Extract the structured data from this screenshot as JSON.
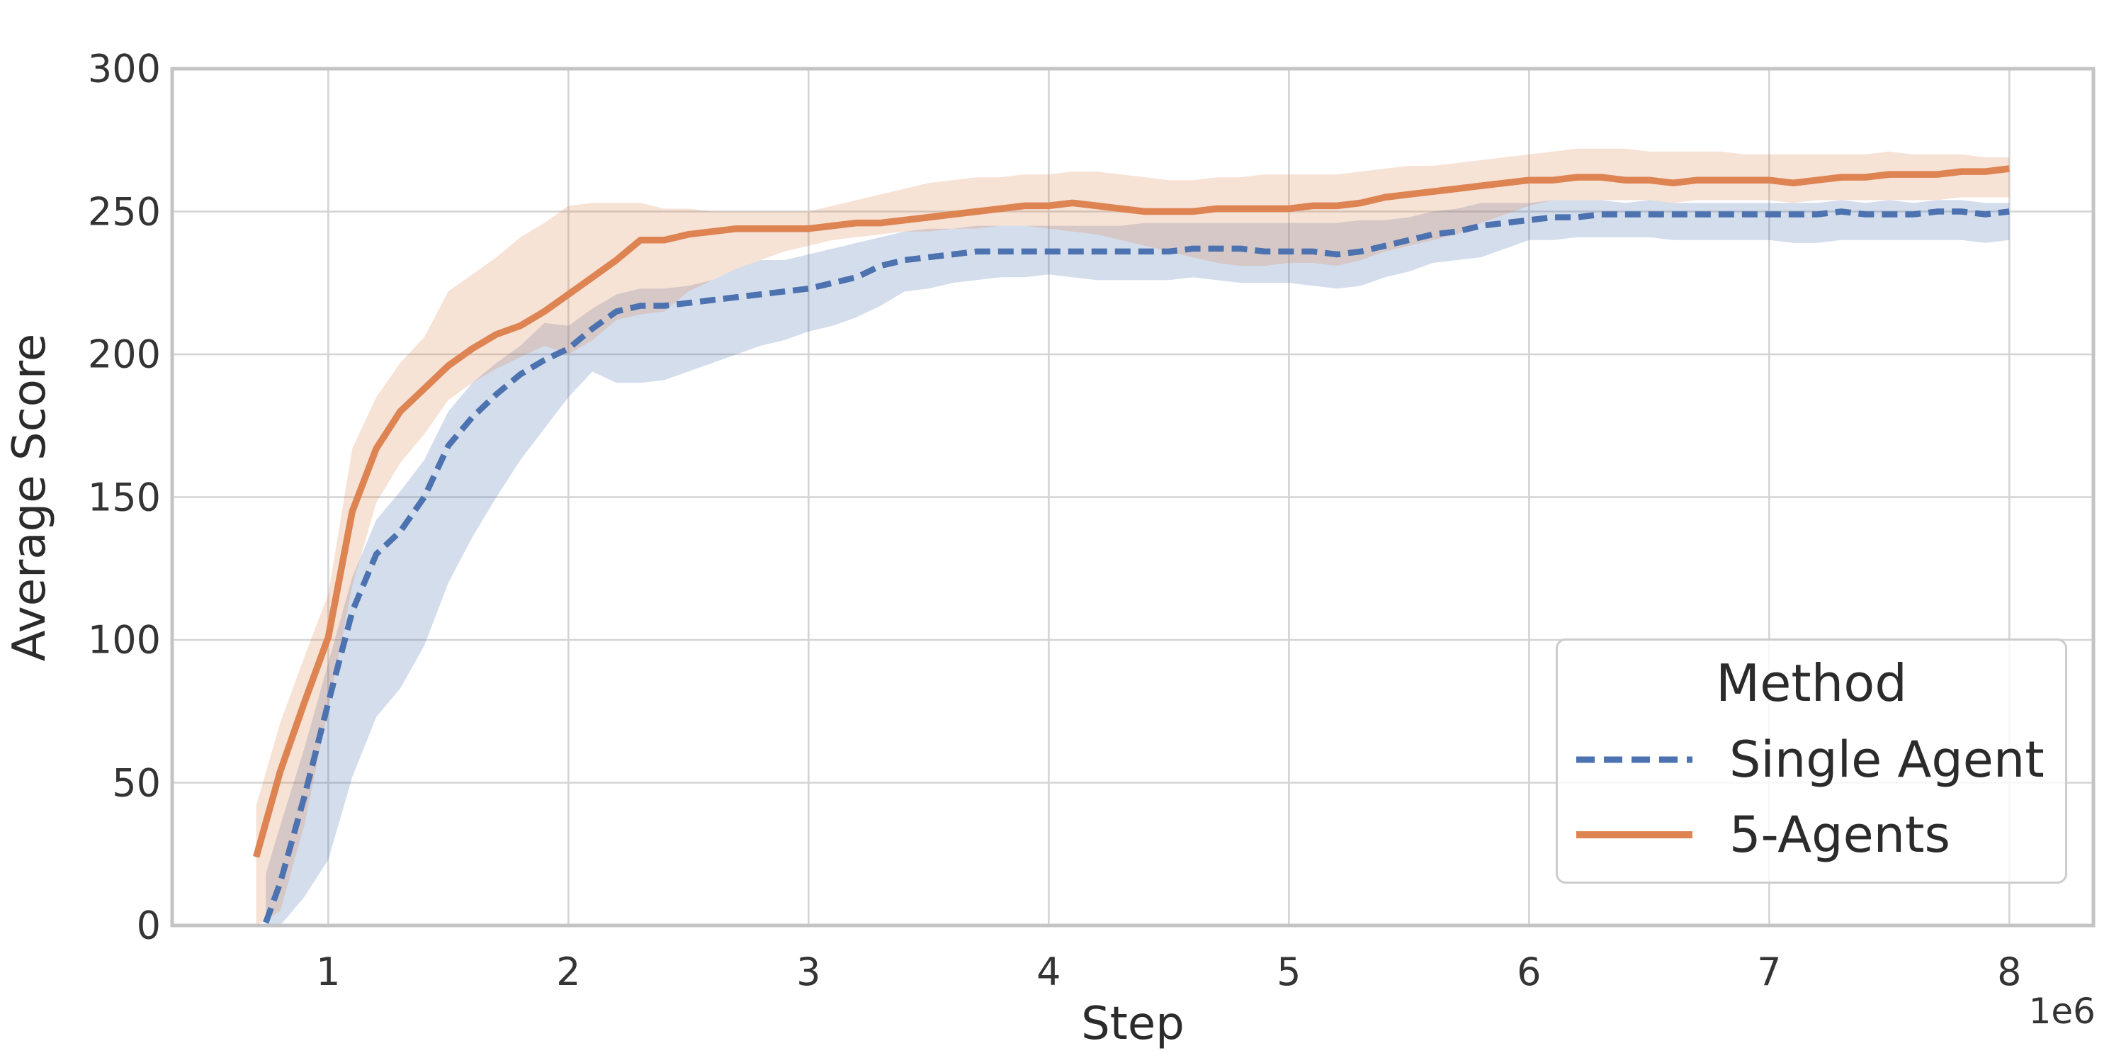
{
  "chart_data": {
    "type": "line",
    "title": "",
    "xlabel": "Step",
    "ylabel": "Average Score",
    "x_axis_offset_label": "1e6",
    "xlim": [
      0.35,
      8.35
    ],
    "ylim": [
      0,
      300
    ],
    "xticks": [
      1,
      2,
      3,
      4,
      5,
      6,
      7,
      8
    ],
    "yticks": [
      0,
      50,
      100,
      150,
      200,
      250,
      300
    ],
    "grid": true,
    "grid_color": "#d4d4d4",
    "spine_color": "#c4c4c4",
    "background_color": "#ffffff",
    "legend": {
      "title": "Method",
      "position": "lower right",
      "entries": [
        {
          "label": "Single Agent",
          "color": "#4C72B0",
          "style": "dashed"
        },
        {
          "label": "5-Agents",
          "color": "#DD8452",
          "style": "solid"
        }
      ]
    },
    "series": [
      {
        "name": "Single Agent",
        "color": "#4C72B0",
        "line_style": "dashed",
        "band_alpha": 0.24,
        "x": [
          0.74,
          0.8,
          0.9,
          1.0,
          1.1,
          1.2,
          1.3,
          1.4,
          1.5,
          1.6,
          1.7,
          1.8,
          1.9,
          2.0,
          2.1,
          2.2,
          2.3,
          2.4,
          2.5,
          2.6,
          2.7,
          2.8,
          2.9,
          3.0,
          3.1,
          3.2,
          3.3,
          3.4,
          3.5,
          3.6,
          3.7,
          3.8,
          3.9,
          4.0,
          4.1,
          4.2,
          4.3,
          4.4,
          4.5,
          4.6,
          4.7,
          4.8,
          4.9,
          5.0,
          5.1,
          5.2,
          5.3,
          5.4,
          5.5,
          5.6,
          5.7,
          5.8,
          5.9,
          6.0,
          6.1,
          6.2,
          6.3,
          6.4,
          6.5,
          6.6,
          6.7,
          6.8,
          6.9,
          7.0,
          7.1,
          7.2,
          7.3,
          7.4,
          7.5,
          7.6,
          7.7,
          7.8,
          7.9,
          8.0
        ],
        "mean": [
          1,
          15,
          45,
          78,
          110,
          130,
          138,
          150,
          168,
          178,
          186,
          193,
          198,
          202,
          209,
          215,
          217,
          217,
          218,
          219,
          220,
          221,
          222,
          223,
          225,
          227,
          231,
          233,
          234,
          235,
          236,
          236,
          236,
          236,
          236,
          236,
          236,
          236,
          236,
          237,
          237,
          237,
          236,
          236,
          236,
          235,
          236,
          238,
          240,
          242,
          243,
          245,
          246,
          247,
          248,
          248,
          249,
          249,
          249,
          249,
          249,
          249,
          249,
          249,
          249,
          249,
          250,
          249,
          249,
          249,
          250,
          250,
          249,
          250
        ],
        "hi": [
          18,
          35,
          62,
          92,
          122,
          142,
          152,
          163,
          180,
          190,
          197,
          203,
          211,
          210,
          216,
          221,
          223,
          223,
          224,
          226,
          230,
          233,
          233,
          235,
          237,
          239,
          241,
          243,
          244,
          244,
          245,
          245,
          245,
          245,
          245,
          245,
          245,
          246,
          246,
          246,
          246,
          246,
          246,
          246,
          246,
          246,
          247,
          247,
          248,
          250,
          251,
          253,
          253,
          253,
          254,
          254,
          254,
          253,
          254,
          253,
          253,
          253,
          253,
          253,
          253,
          253,
          254,
          253,
          254,
          253,
          254,
          254,
          253,
          253
        ],
        "lo": [
          0,
          0,
          10,
          23,
          52,
          73,
          83,
          98,
          120,
          136,
          150,
          163,
          174,
          185,
          194,
          190,
          190,
          191,
          194,
          197,
          200,
          203,
          205,
          208,
          210,
          213,
          217,
          222,
          223,
          225,
          226,
          227,
          227,
          228,
          227,
          226,
          226,
          226,
          226,
          227,
          226,
          225,
          225,
          225,
          224,
          223,
          224,
          227,
          229,
          232,
          233,
          234,
          237,
          240,
          240,
          241,
          241,
          241,
          241,
          240,
          240,
          240,
          240,
          240,
          239,
          239,
          240,
          240,
          240,
          240,
          240,
          240,
          239,
          240
        ]
      },
      {
        "name": "5-Agents",
        "color": "#DD8452",
        "line_style": "solid",
        "band_alpha": 0.24,
        "x": [
          0.7,
          0.8,
          0.9,
          1.0,
          1.1,
          1.2,
          1.3,
          1.4,
          1.5,
          1.6,
          1.7,
          1.8,
          1.9,
          2.0,
          2.1,
          2.2,
          2.3,
          2.4,
          2.5,
          2.6,
          2.7,
          2.8,
          2.9,
          3.0,
          3.1,
          3.2,
          3.3,
          3.4,
          3.5,
          3.6,
          3.7,
          3.8,
          3.9,
          4.0,
          4.1,
          4.2,
          4.3,
          4.4,
          4.5,
          4.6,
          4.7,
          4.8,
          4.9,
          5.0,
          5.1,
          5.2,
          5.3,
          5.4,
          5.5,
          5.6,
          5.7,
          5.8,
          5.9,
          6.0,
          6.1,
          6.2,
          6.3,
          6.4,
          6.5,
          6.6,
          6.7,
          6.8,
          6.9,
          7.0,
          7.1,
          7.2,
          7.3,
          7.4,
          7.5,
          7.6,
          7.7,
          7.8,
          7.9,
          8.0
        ],
        "mean": [
          24,
          54,
          78,
          101,
          145,
          167,
          180,
          188,
          196,
          202,
          207,
          210,
          215,
          221,
          227,
          233,
          240,
          240,
          242,
          243,
          244,
          244,
          244,
          244,
          245,
          246,
          246,
          247,
          248,
          249,
          250,
          251,
          252,
          252,
          253,
          252,
          251,
          250,
          250,
          250,
          251,
          251,
          251,
          251,
          252,
          252,
          253,
          255,
          256,
          257,
          258,
          259,
          260,
          261,
          261,
          262,
          262,
          261,
          261,
          260,
          261,
          261,
          261,
          261,
          260,
          261,
          262,
          262,
          263,
          263,
          263,
          264,
          264,
          265
        ],
        "hi": [
          42,
          71,
          94,
          116,
          167,
          185,
          197,
          206,
          222,
          228,
          234,
          241,
          246,
          252,
          253,
          253,
          253,
          251,
          251,
          250,
          250,
          250,
          250,
          250,
          252,
          254,
          256,
          258,
          260,
          261,
          262,
          262,
          263,
          263,
          264,
          264,
          263,
          262,
          261,
          261,
          262,
          262,
          263,
          263,
          263,
          263,
          264,
          265,
          266,
          266,
          267,
          268,
          269,
          270,
          271,
          272,
          272,
          272,
          271,
          271,
          271,
          271,
          270,
          270,
          270,
          270,
          270,
          270,
          271,
          270,
          270,
          270,
          269,
          269
        ],
        "lo": [
          0,
          5,
          35,
          76,
          119,
          148,
          162,
          172,
          184,
          190,
          195,
          199,
          203,
          200,
          205,
          212,
          214,
          215,
          222,
          226,
          230,
          233,
          236,
          238,
          240,
          241,
          242,
          243,
          243,
          244,
          244,
          245,
          245,
          244,
          243,
          242,
          240,
          238,
          236,
          234,
          232,
          231,
          231,
          232,
          232,
          231,
          233,
          236,
          238,
          240,
          242,
          246,
          249,
          252,
          254,
          254,
          254,
          254,
          254,
          253,
          254,
          254,
          254,
          254,
          253,
          254,
          254,
          254,
          254,
          254,
          254,
          255,
          255,
          255
        ]
      }
    ]
  }
}
